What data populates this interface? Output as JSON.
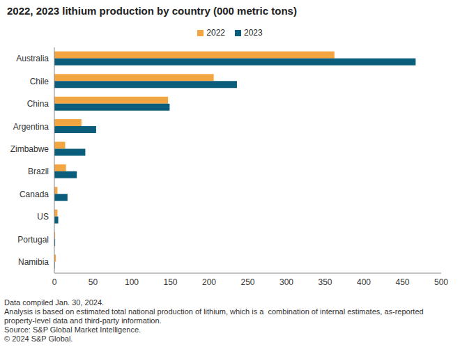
{
  "chart_data": {
    "type": "bar",
    "orientation": "horizontal",
    "title": "2022, 2023 lithium production by country (000 metric tons)",
    "categories": [
      "Australia",
      "Chile",
      "China",
      "Argentina",
      "Zimbabwe",
      "Brazil",
      "Canada",
      "US",
      "Portugal",
      "Namibia"
    ],
    "series": [
      {
        "name": "2022",
        "color": "#f2a541",
        "values": [
          362,
          206,
          147,
          35,
          14,
          15,
          4,
          4,
          1,
          2
        ]
      },
      {
        "name": "2023",
        "color": "#0b5e7b",
        "values": [
          467,
          236,
          149,
          54,
          40,
          29,
          17,
          5,
          1,
          0.5
        ]
      }
    ],
    "xlim": [
      0,
      500
    ],
    "xticks": [
      0,
      50,
      100,
      150,
      200,
      250,
      300,
      350,
      400,
      450,
      500
    ],
    "grid": false,
    "legend": "top",
    "annotations": [
      "Data compiled Jan. 30, 2024.",
      "Analysis is based on estimated total national production of lithium, which is a  combination of internal estimates, as-reported property-level data and third-party information.",
      "Source: S&P Global Market Intelligence.",
      "© 2024 S&P Global."
    ]
  }
}
